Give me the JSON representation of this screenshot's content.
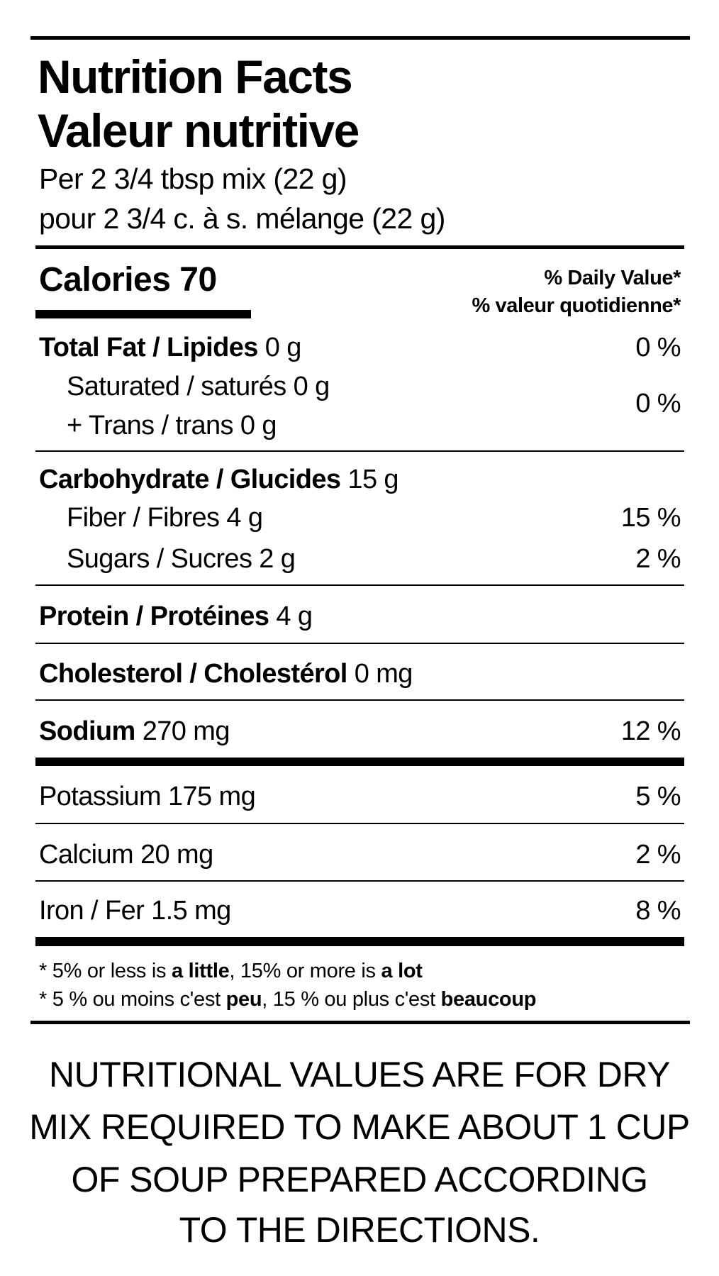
{
  "title_en": "Nutrition Facts",
  "title_fr": "Valeur nutritive",
  "serving_en": "Per 2 3/4 tbsp mix (22 g)",
  "serving_fr": "pour 2 3/4 c. à s. mélange (22 g)",
  "calories_label": "Calories 70",
  "dv_header_en": "% Daily Value*",
  "dv_header_fr": "% valeur quotidienne*",
  "fat": {
    "label": "Total Fat / Lipides",
    "amount": "0 g",
    "dv": "0 %"
  },
  "saturated": {
    "label": "Saturated / saturés 0 g"
  },
  "trans": {
    "label": "+ Trans / trans 0 g"
  },
  "sat_trans_dv": "0 %",
  "carb": {
    "label": "Carbohydrate / Glucides",
    "amount": "15 g"
  },
  "fiber": {
    "label": "Fiber / Fibres 4 g",
    "dv": "15 %"
  },
  "sugars": {
    "label": "Sugars / Sucres 2 g",
    "dv": "2 %"
  },
  "protein": {
    "label": "Protein / Protéines",
    "amount": "4 g"
  },
  "cholesterol": {
    "label": "Cholesterol / Cholestérol",
    "amount": "0 mg"
  },
  "sodium": {
    "label": "Sodium",
    "amount": "270 mg",
    "dv": "12 %"
  },
  "potassium": {
    "label": "Potassium 175 mg",
    "dv": "5 %"
  },
  "calcium": {
    "label": "Calcium 20 mg",
    "dv": "2 %"
  },
  "iron": {
    "label": "Iron / Fer 1.5 mg",
    "dv": "8 %"
  },
  "footnote_en": {
    "p1": "* 5% or less is ",
    "b1": "a little",
    "p2": ", 15% or more is ",
    "b2": "a lot"
  },
  "footnote_fr": {
    "p1": "* 5 % ou moins c'est ",
    "b1": "peu",
    "p2": ", 15 % ou plus c'est ",
    "b2": "beaucoup"
  },
  "note_lines": [
    "NUTRITIONAL VALUES ARE FOR DRY",
    "MIX REQUIRED TO MAKE ABOUT 1 CUP",
    "OF SOUP PREPARED ACCORDING",
    "TO THE DIRECTIONS."
  ]
}
